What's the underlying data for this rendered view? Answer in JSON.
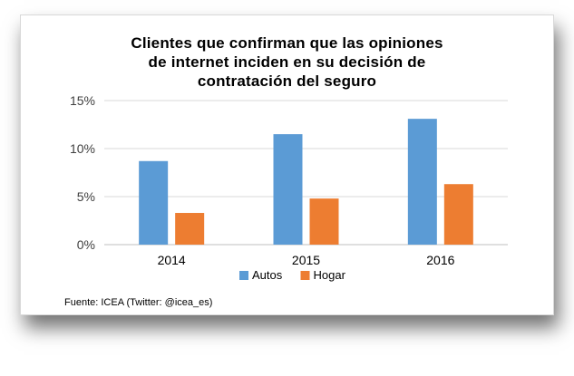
{
  "chart_data": {
    "type": "bar",
    "title": "Clientes que confirman que las opiniones\nde internet inciden en su decisión de\ncontratación del seguro",
    "categories": [
      "2014",
      "2015",
      "2016"
    ],
    "series": [
      {
        "name": "Autos",
        "values": [
          8.7,
          11.5,
          13.1
        ],
        "color": "#5B9BD5"
      },
      {
        "name": "Hogar",
        "values": [
          3.3,
          4.8,
          6.3
        ],
        "color": "#ED7D31"
      }
    ],
    "ylim": [
      0,
      15
    ],
    "yticks": [
      0,
      5,
      10,
      15
    ],
    "ytick_labels": [
      "0%",
      "5%",
      "10%",
      "15%"
    ],
    "xlabel": "",
    "ylabel": "",
    "grid": true,
    "legend_position": "bottom"
  },
  "source": "Fuente: ICEA (Twitter: @icea_es)"
}
